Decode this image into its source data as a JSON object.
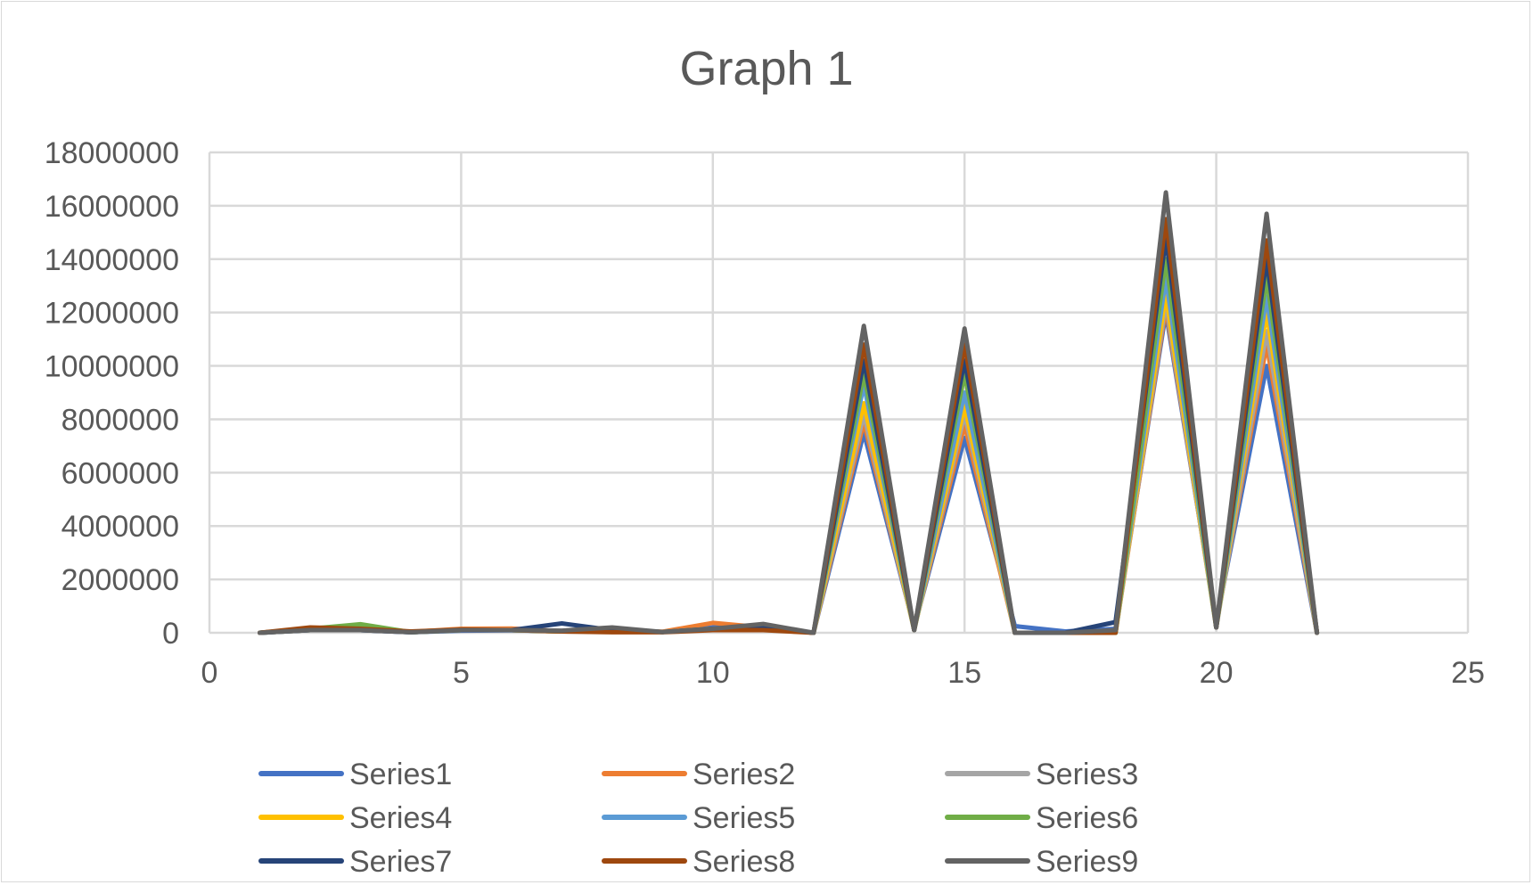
{
  "chart_data": {
    "type": "line",
    "title": "Graph 1",
    "xlabel": "",
    "ylabel": "",
    "xlim": [
      0,
      25
    ],
    "ylim": [
      0,
      18000000
    ],
    "xticks": [
      0,
      5,
      10,
      15,
      20,
      25
    ],
    "yticks": [
      0,
      2000000,
      4000000,
      6000000,
      8000000,
      10000000,
      12000000,
      14000000,
      16000000,
      18000000
    ],
    "grid": true,
    "legend_position": "bottom",
    "x": [
      1,
      2,
      3,
      4,
      5,
      6,
      7,
      8,
      9,
      10,
      11,
      12,
      13,
      14,
      15,
      16,
      17,
      18,
      19,
      20,
      21,
      22
    ],
    "series": [
      {
        "name": "Series1",
        "color": "#4472C4",
        "values": [
          0,
          150000,
          100000,
          20000,
          80000,
          90000,
          60000,
          90000,
          30000,
          200000,
          250000,
          0,
          7500000,
          200000,
          7300000,
          250000,
          50000,
          150000,
          12000000,
          400000,
          10000000,
          0
        ]
      },
      {
        "name": "Series2",
        "color": "#ED7D31",
        "values": [
          0,
          150000,
          120000,
          30000,
          150000,
          160000,
          60000,
          80000,
          40000,
          370000,
          200000,
          0,
          7900000,
          150000,
          7800000,
          0,
          0,
          0,
          12200000,
          300000,
          10800000,
          0
        ]
      },
      {
        "name": "Series3",
        "color": "#A5A5A5",
        "values": [
          0,
          100000,
          100000,
          20000,
          100000,
          100000,
          50000,
          120000,
          30000,
          150000,
          200000,
          0,
          8200000,
          100000,
          8200000,
          0,
          0,
          0,
          12400000,
          200000,
          11300000,
          0
        ]
      },
      {
        "name": "Series4",
        "color": "#FFC000",
        "values": [
          0,
          100000,
          200000,
          20000,
          100000,
          100000,
          50000,
          100000,
          30000,
          150000,
          200000,
          0,
          8600000,
          100000,
          8500000,
          0,
          0,
          0,
          12700000,
          200000,
          12000000,
          0
        ]
      },
      {
        "name": "Series5",
        "color": "#5B9BD5",
        "values": [
          0,
          100000,
          150000,
          20000,
          100000,
          100000,
          50000,
          100000,
          30000,
          150000,
          200000,
          0,
          9300000,
          100000,
          9000000,
          0,
          0,
          0,
          13300000,
          200000,
          12600000,
          0
        ]
      },
      {
        "name": "Series6",
        "color": "#70AD47",
        "values": [
          0,
          150000,
          320000,
          20000,
          100000,
          100000,
          50000,
          100000,
          30000,
          150000,
          200000,
          0,
          9700000,
          100000,
          9700000,
          0,
          0,
          0,
          14000000,
          200000,
          13300000,
          0
        ]
      },
      {
        "name": "Series7",
        "color": "#264478",
        "values": [
          0,
          100000,
          100000,
          20000,
          100000,
          100000,
          350000,
          100000,
          30000,
          150000,
          200000,
          0,
          10200000,
          100000,
          10200000,
          0,
          0,
          400000,
          14800000,
          200000,
          14000000,
          0
        ]
      },
      {
        "name": "Series8",
        "color": "#9E480E",
        "values": [
          0,
          200000,
          150000,
          50000,
          120000,
          100000,
          50000,
          20000,
          20000,
          100000,
          100000,
          0,
          10800000,
          100000,
          10800000,
          0,
          0,
          0,
          15500000,
          200000,
          14700000,
          0
        ]
      },
      {
        "name": "Series9",
        "color": "#636363",
        "values": [
          0,
          100000,
          100000,
          20000,
          100000,
          100000,
          80000,
          200000,
          30000,
          150000,
          330000,
          0,
          11500000,
          100000,
          11400000,
          0,
          0,
          100000,
          16500000,
          200000,
          15700000,
          0
        ]
      }
    ]
  }
}
